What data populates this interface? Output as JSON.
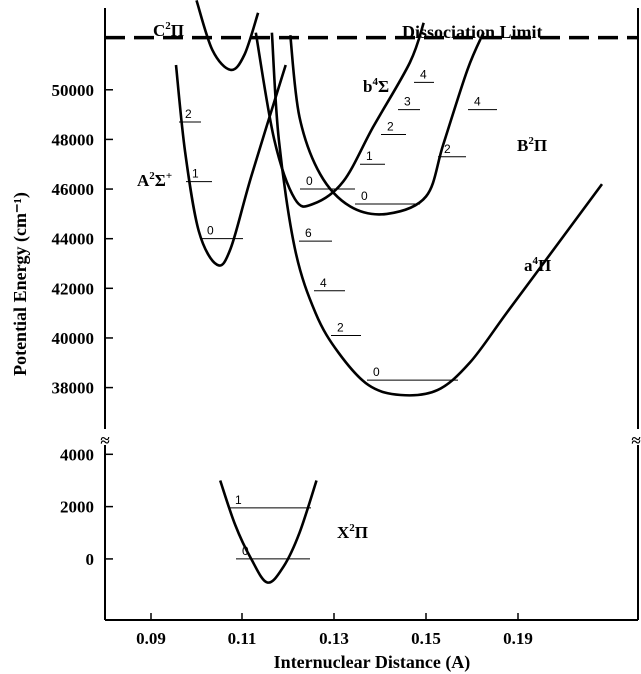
{
  "chart_data": {
    "type": "line",
    "title": "",
    "xlabel": "Internuclear Distance (A)",
    "ylabel": "Potential Energy (cm⁻¹)",
    "y_axis_broken": true,
    "xlim": [
      0.08,
      0.22
    ],
    "ylim_upper": [
      36700,
      52700
    ],
    "ylim_lower": [
      -2000,
      5200
    ],
    "x_ticks": [
      0.09,
      0.11,
      0.13,
      0.15,
      0.19
    ],
    "x_tick_labels": [
      "0.09",
      "0.11",
      "0.13",
      "0.15",
      "0.19"
    ],
    "y_ticks_upper": [
      38000,
      40000,
      42000,
      44000,
      46000,
      48000,
      50000
    ],
    "y_tick_labels_upper": [
      "38000",
      "40000",
      "42000",
      "44000",
      "46000",
      "48000",
      "50000"
    ],
    "y_ticks_lower": [
      0,
      2000,
      4000
    ],
    "y_tick_labels_lower": [
      "0",
      "2000",
      "4000"
    ],
    "break_symbol": "≈",
    "dissociation_limit": {
      "label": "Dissociation Limit",
      "energy": 52100
    },
    "grid": false,
    "series": [
      {
        "name": "X²Π",
        "name_main": "X",
        "name_sup": "2",
        "name_post": "Π",
        "panel": "lower",
        "curve": [
          [
            0.1052,
            3000
          ],
          [
            0.1085,
            1300
          ],
          [
            0.112,
            0
          ],
          [
            0.1155,
            -900
          ],
          [
            0.119,
            -300
          ],
          [
            0.1225,
            1000
          ],
          [
            0.1262,
            3000
          ]
        ],
        "levels": [
          {
            "v": "0",
            "E": 0
          },
          {
            "v": "1",
            "E": 1950
          }
        ]
      },
      {
        "name": "A²Σ⁺",
        "name_main": "A",
        "name_sup": "2",
        "name_post": "Σ",
        "name_sup2": "+",
        "panel": "upper",
        "curve": [
          [
            0.0955,
            51000
          ],
          [
            0.0975,
            47500
          ],
          [
            0.1005,
            44300
          ],
          [
            0.1045,
            42950
          ],
          [
            0.1075,
            43600
          ],
          [
            0.112,
            46500
          ],
          [
            0.1195,
            51000
          ]
        ],
        "levels": [
          {
            "v": "0",
            "E": 44000
          },
          {
            "v": "1",
            "E": 46300
          },
          {
            "v": "2",
            "E": 48700
          }
        ]
      },
      {
        "name": "C²Π",
        "name_main": "C",
        "name_sup": "2",
        "name_post": "Π",
        "panel": "upper",
        "curve": [
          [
            0.1,
            53600
          ],
          [
            0.1035,
            51600
          ],
          [
            0.1075,
            50800
          ],
          [
            0.1105,
            51400
          ],
          [
            0.1135,
            53100
          ]
        ],
        "levels": []
      },
      {
        "name": "b⁴Σ",
        "name_main": "b",
        "name_sup": "4",
        "name_post": "Σ",
        "panel": "upper",
        "curve": [
          [
            0.113,
            52300
          ],
          [
            0.117,
            48000
          ],
          [
            0.1215,
            45600
          ],
          [
            0.1255,
            45400
          ],
          [
            0.132,
            46300
          ],
          [
            0.1385,
            48500
          ],
          [
            0.1465,
            51100
          ],
          [
            0.1495,
            52700
          ]
        ],
        "levels": [
          {
            "v": "0",
            "E": 46000
          },
          {
            "v": "1",
            "E": 47000
          },
          {
            "v": "2",
            "E": 48200
          },
          {
            "v": "3",
            "E": 49200
          },
          {
            "v": "4",
            "E": 50300
          }
        ]
      },
      {
        "name": "B²Π",
        "name_main": "B",
        "name_sup": "2",
        "name_post": "Π",
        "panel": "upper",
        "curve": [
          [
            0.1205,
            52200
          ],
          [
            0.1225,
            48900
          ],
          [
            0.127,
            46600
          ],
          [
            0.1335,
            45300
          ],
          [
            0.1415,
            45000
          ],
          [
            0.15,
            45700
          ],
          [
            0.1575,
            47800
          ],
          [
            0.168,
            50800
          ],
          [
            0.175,
            52300
          ]
        ],
        "levels": [
          {
            "v": "0",
            "E": 45400
          },
          {
            "v": "2",
            "E": 47300
          },
          {
            "v": "4",
            "E": 49200
          }
        ]
      },
      {
        "name": "a⁴Π",
        "name_main": "a",
        "name_sup": "4",
        "name_post": "Π",
        "panel": "upper",
        "curve": [
          [
            0.1165,
            52300
          ],
          [
            0.118,
            48000
          ],
          [
            0.1215,
            43600
          ],
          [
            0.126,
            41000
          ],
          [
            0.131,
            39400
          ],
          [
            0.1375,
            38100
          ],
          [
            0.1445,
            37700
          ],
          [
            0.155,
            37900
          ],
          [
            0.169,
            39000
          ],
          [
            0.185,
            41000
          ],
          [
            0.2,
            43800
          ],
          [
            0.211,
            46200
          ]
        ],
        "levels": [
          {
            "v": "0",
            "E": 38300
          },
          {
            "v": "2",
            "E": 40100
          },
          {
            "v": "4",
            "E": 41900
          },
          {
            "v": "6",
            "E": 43900
          }
        ]
      }
    ]
  }
}
